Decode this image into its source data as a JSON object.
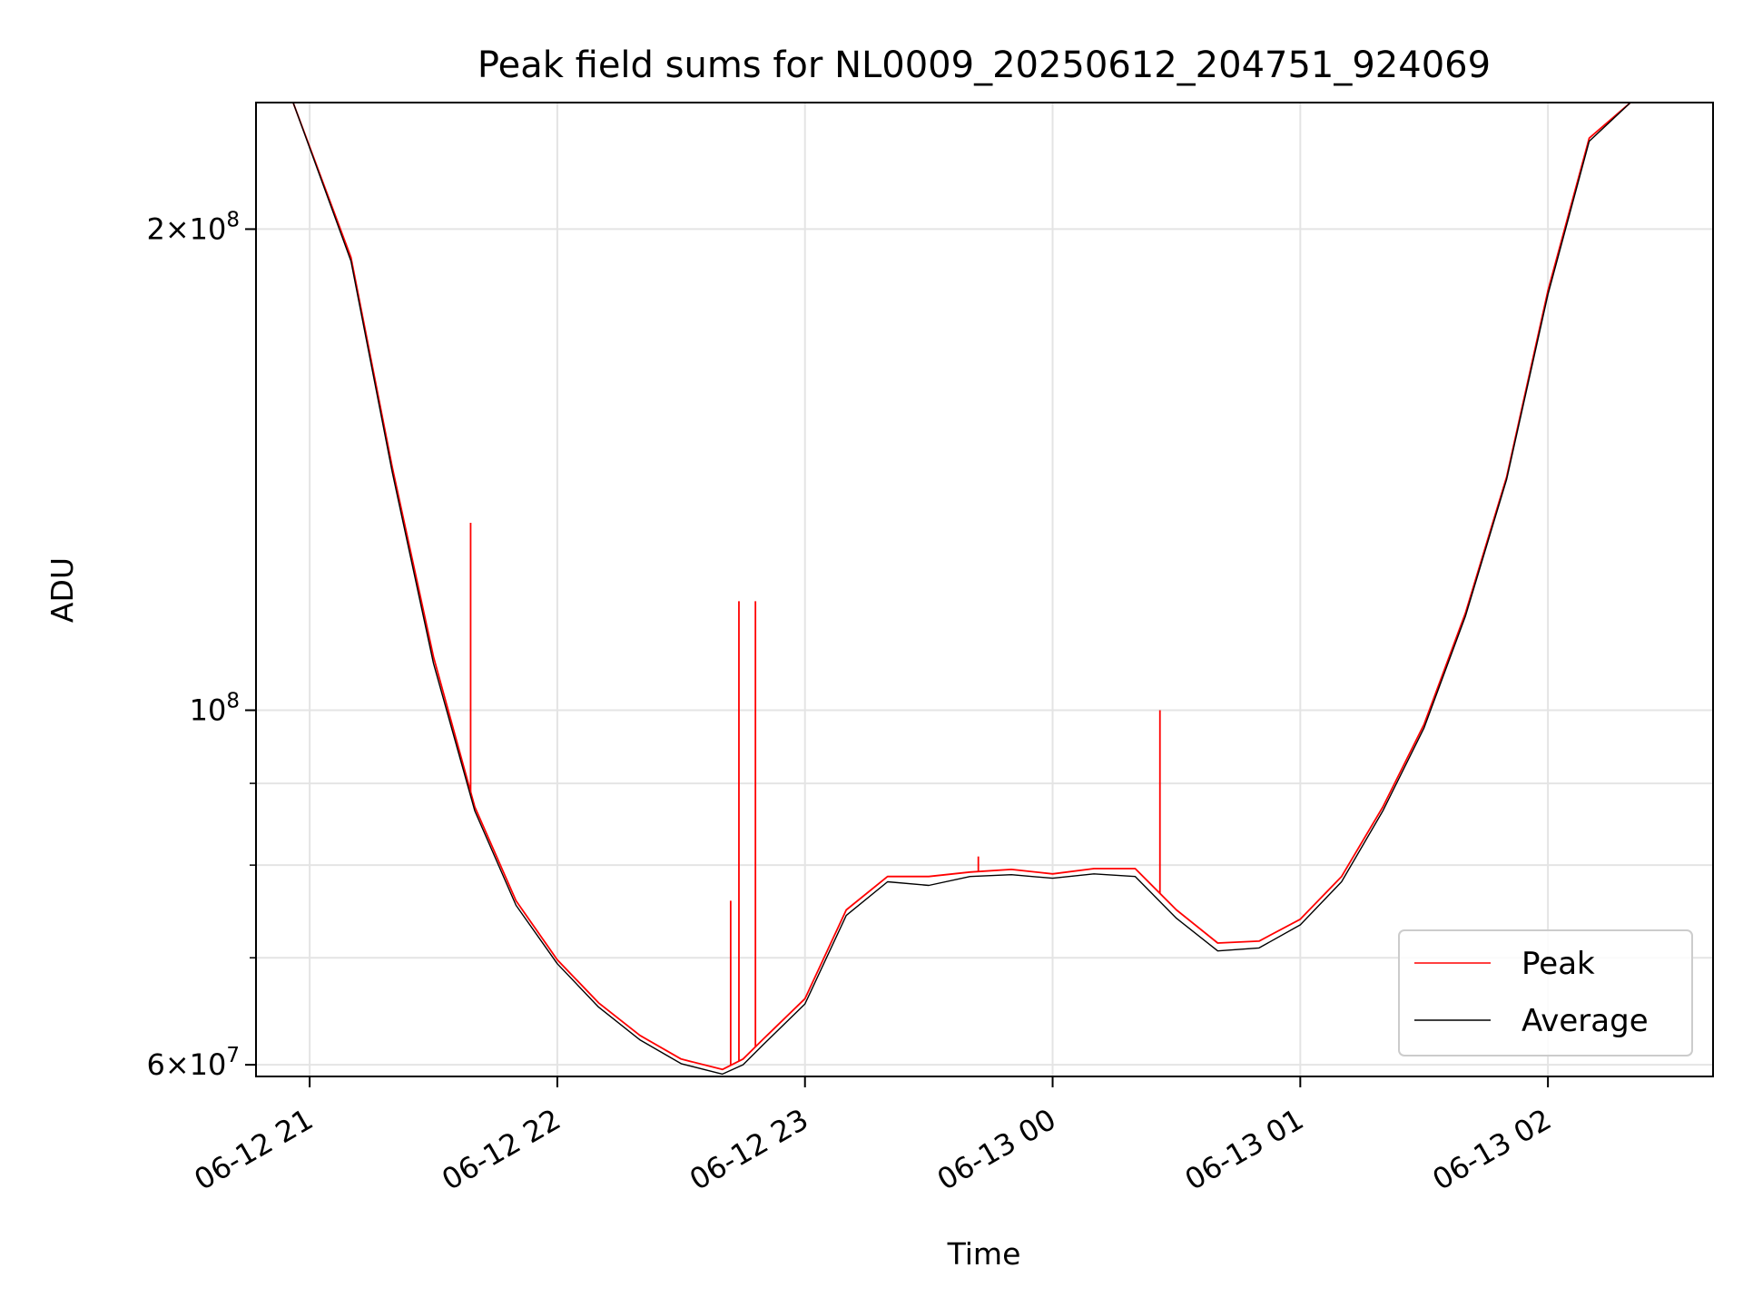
{
  "chart_data": {
    "type": "line",
    "title": "Peak field sums for NL0009_20250612_204751_924069",
    "xlabel": "Time",
    "ylabel": "ADU",
    "yscale": "log",
    "grid": true,
    "legend_position": "lower right",
    "xlim": [
      "2025-06-12 20:47",
      "2025-06-13 02:40"
    ],
    "ylim": [
      59000000,
      240000000
    ],
    "x_ticks": [
      "06-12 21",
      "06-12 22",
      "06-12 23",
      "06-13 00",
      "06-13 01",
      "06-13 02"
    ],
    "y_tick_labels": [
      {
        "value": 200000000,
        "mantissa": "2",
        "exponent": "8"
      },
      {
        "value": 100000000,
        "mantissa": "",
        "exponent": "8"
      },
      {
        "value": 60000000,
        "mantissa": "6",
        "exponent": "7"
      }
    ],
    "y_minor_ticks": [
      70000000,
      80000000,
      90000000
    ],
    "x": [
      "20:56",
      "21:10",
      "21:20",
      "21:30",
      "21:40",
      "21:50",
      "22:00",
      "22:10",
      "22:20",
      "22:30",
      "22:40",
      "22:45",
      "22:50",
      "23:00",
      "23:10",
      "23:20",
      "23:30",
      "23:40",
      "23:50",
      "00:00",
      "00:10",
      "00:20",
      "00:30",
      "00:40",
      "00:50",
      "01:00",
      "01:10",
      "01:20",
      "01:30",
      "01:40",
      "01:50",
      "02:00",
      "02:10",
      "02:20",
      "02:40"
    ],
    "series": [
      {
        "name": "Peak",
        "color": "#ff0000",
        "values": [
          240000000,
          192000000,
          142000000,
          108000000,
          87000000,
          76000000,
          69800000,
          65600000,
          62600000,
          60500000,
          59600000,
          60500000,
          62300000,
          66000000,
          75000000,
          78700000,
          78700000,
          79200000,
          79500000,
          79000000,
          79600000,
          79600000,
          75000000,
          71500000,
          71700000,
          74000000,
          78700000,
          87000000,
          98000000,
          115000000,
          140000000,
          183000000,
          228000000,
          240000000,
          240000000
        ]
      },
      {
        "name": "Average",
        "color": "#000000",
        "values": [
          240000000,
          191000000,
          141000000,
          107000000,
          86500000,
          75500000,
          69400000,
          65200000,
          62200000,
          60100000,
          59200000,
          60000000,
          61800000,
          65500000,
          74400000,
          78100000,
          77700000,
          78700000,
          78900000,
          78500000,
          79000000,
          78700000,
          74100000,
          70700000,
          71000000,
          73400000,
          78100000,
          86500000,
          97500000,
          114500000,
          139500000,
          182000000,
          227000000,
          240000000,
          240000000
        ]
      }
    ],
    "spikes": [
      {
        "series": "Peak",
        "x": "21:39",
        "value": 131000000
      },
      {
        "series": "Peak",
        "x": "22:42",
        "value": 76000000
      },
      {
        "series": "Peak",
        "x": "22:44",
        "value": 117000000
      },
      {
        "series": "Peak",
        "x": "22:48",
        "value": 117000000
      },
      {
        "series": "Peak",
        "x": "23:42",
        "value": 81000000
      },
      {
        "series": "Peak",
        "x": "00:26",
        "value": 100000000
      }
    ]
  }
}
